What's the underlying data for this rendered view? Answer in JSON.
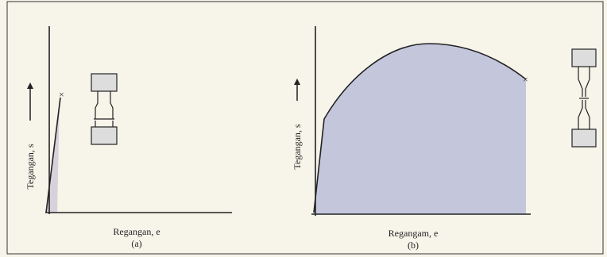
{
  "panels": [
    {
      "stress_label": "Tegangan, s",
      "strain_label": "Regangan, e",
      "caption": "(a)"
    },
    {
      "stress_label": "Tegangan, s",
      "strain_label": "Regangam, e",
      "caption": "(b)"
    }
  ]
}
